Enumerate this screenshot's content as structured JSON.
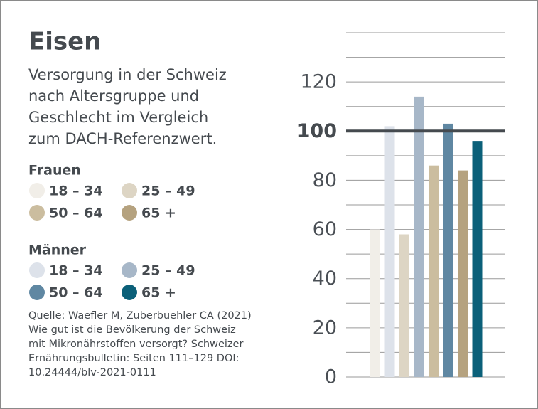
{
  "chart_data": {
    "type": "bar",
    "title": "Eisen",
    "subtitle": [
      "Versorgung in der Schweiz",
      "nach Altersgruppe und",
      "Geschlecht im Vergleich",
      "zum DACH-Referenzwert."
    ],
    "categories": [
      "18 – 34",
      "25 – 49",
      "50 – 64",
      "65 +"
    ],
    "series": [
      {
        "name": "Frauen",
        "colors": [
          "#f1eee8",
          "#ddd5c4",
          "#cbbd9f",
          "#b5a27f"
        ],
        "values": [
          60,
          58,
          86,
          84
        ]
      },
      {
        "name": "Männer",
        "colors": [
          "#dde2ea",
          "#a7b7c8",
          "#5f87a2",
          "#0b6079"
        ],
        "values": [
          102,
          114,
          103,
          96
        ]
      }
    ],
    "ylim": [
      0,
      140
    ],
    "yticks": [
      0,
      20,
      40,
      60,
      80,
      100,
      120
    ],
    "minor_yticks": [
      10,
      30,
      50,
      70,
      90,
      110,
      130,
      140
    ],
    "reference_line": 100,
    "grid": true,
    "source": [
      "Quelle: Waefler M, Zuberbuehler CA (2021)",
      "Wie gut ist die Bevölkerung der Schweiz",
      "mit Mikronährstoffen versorgt? Schweizer",
      "Ernährungsbulletin: Seiten 111–129 DOI:",
      "10.24444/blv-2021-0111"
    ]
  }
}
